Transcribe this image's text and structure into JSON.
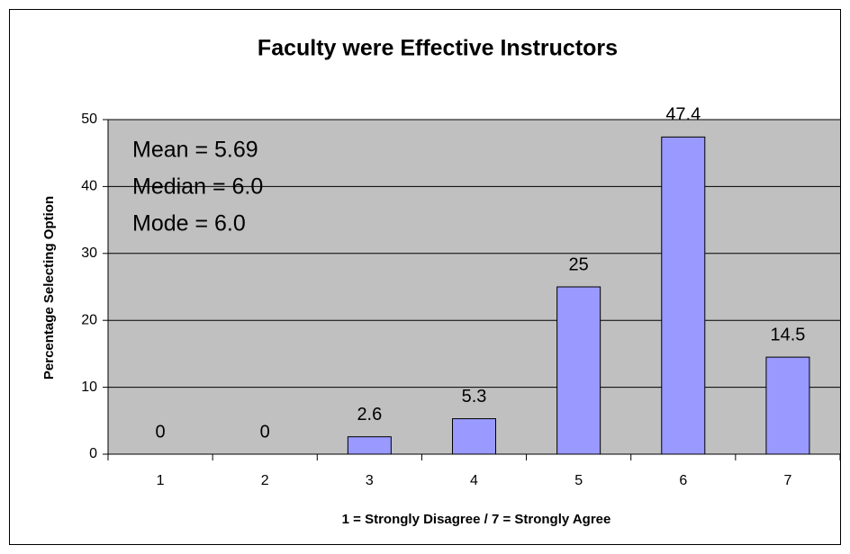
{
  "chart_data": {
    "type": "bar",
    "title": "Faculty were Effective Instructors",
    "x_label": "1 = Strongly Disagree / 7 = Strongly Agree",
    "y_label": "Percentage Selecting Option",
    "annotations": [
      "Mean = 5.69",
      "Median = 6.0",
      "Mode = 6.0"
    ],
    "categories": [
      "1",
      "2",
      "3",
      "4",
      "5",
      "6",
      "7"
    ],
    "values": [
      0,
      0,
      2.6,
      5.3,
      25,
      47.4,
      14.5
    ],
    "color": "#9999ff",
    "plot_background": "#c0c0c0",
    "ylim": [
      0,
      50
    ],
    "yticks": [
      0,
      10,
      20,
      30,
      40,
      50
    ],
    "grid": true
  }
}
